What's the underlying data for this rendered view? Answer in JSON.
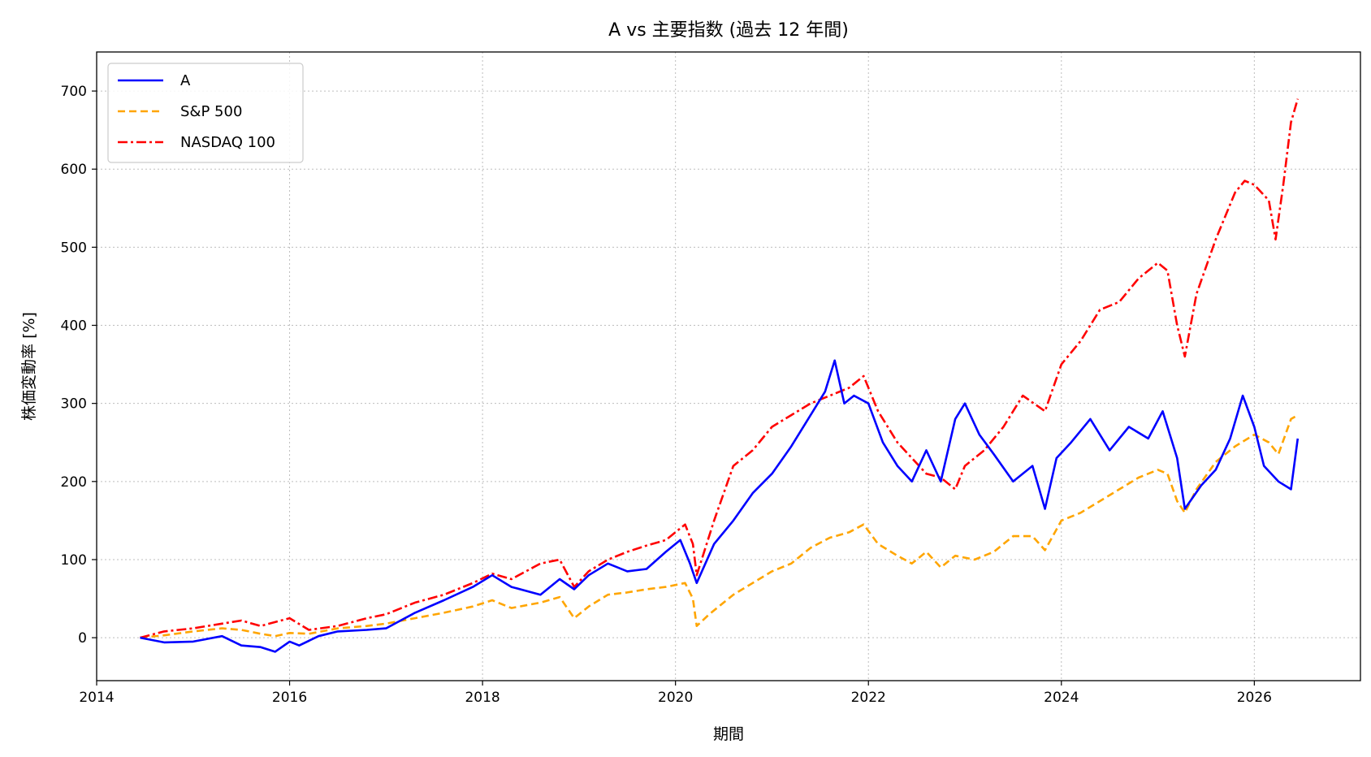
{
  "chart_data": {
    "type": "line",
    "title": "A vs 主要指数 (過去 12 年間)",
    "xlabel": "期間",
    "ylabel": "株価変動率 [%]",
    "xlim": [
      2014.0,
      2027.1
    ],
    "ylim": [
      -55,
      750
    ],
    "x_ticks": [
      2014,
      2016,
      2018,
      2020,
      2022,
      2024,
      2026
    ],
    "x_tick_labels": [
      "2014",
      "2016",
      "2018",
      "2020",
      "2022",
      "2024",
      "2026"
    ],
    "y_ticks": [
      0,
      100,
      200,
      300,
      400,
      500,
      600,
      700
    ],
    "y_tick_labels": [
      "0",
      "100",
      "200",
      "300",
      "400",
      "500",
      "600",
      "700"
    ],
    "grid": true,
    "legend_position": "top-left",
    "series": [
      {
        "name": "A",
        "color": "#0000ff",
        "line_style": "solid",
        "x": [
          2014.45,
          2014.7,
          2015.0,
          2015.3,
          2015.5,
          2015.7,
          2015.85,
          2016.0,
          2016.1,
          2016.3,
          2016.5,
          2016.8,
          2017.0,
          2017.3,
          2017.6,
          2017.9,
          2018.1,
          2018.3,
          2018.6,
          2018.8,
          2018.95,
          2019.1,
          2019.3,
          2019.5,
          2019.7,
          2019.9,
          2020.05,
          2020.15,
          2020.22,
          2020.4,
          2020.6,
          2020.8,
          2021.0,
          2021.2,
          2021.4,
          2021.55,
          2021.65,
          2021.75,
          2021.85,
          2022.0,
          2022.15,
          2022.3,
          2022.45,
          2022.6,
          2022.75,
          2022.9,
          2023.0,
          2023.15,
          2023.3,
          2023.5,
          2023.7,
          2023.83,
          2023.95,
          2024.1,
          2024.3,
          2024.5,
          2024.7,
          2024.9,
          2025.05,
          2025.2,
          2025.28,
          2025.45,
          2025.6,
          2025.75,
          2025.88,
          2026.0,
          2026.1,
          2026.25,
          2026.38,
          2026.45
        ],
        "y": [
          0,
          -6,
          -5,
          2,
          -10,
          -12,
          -18,
          -5,
          -10,
          2,
          8,
          10,
          12,
          32,
          48,
          65,
          80,
          65,
          55,
          75,
          62,
          80,
          95,
          85,
          88,
          110,
          125,
          95,
          70,
          120,
          150,
          185,
          210,
          245,
          285,
          315,
          355,
          300,
          310,
          300,
          250,
          220,
          200,
          240,
          200,
          280,
          300,
          260,
          235,
          200,
          220,
          165,
          230,
          250,
          280,
          240,
          270,
          255,
          290,
          230,
          165,
          195,
          215,
          255,
          310,
          270,
          220,
          200,
          190,
          255
        ]
      },
      {
        "name": "S&P 500",
        "color": "#ffa500",
        "line_style": "dashed",
        "x": [
          2014.45,
          2014.7,
          2015.0,
          2015.3,
          2015.5,
          2015.7,
          2015.85,
          2016.0,
          2016.2,
          2016.5,
          2016.8,
          2017.0,
          2017.3,
          2017.6,
          2017.9,
          2018.1,
          2018.3,
          2018.6,
          2018.8,
          2018.95,
          2019.1,
          2019.3,
          2019.5,
          2019.7,
          2019.9,
          2020.1,
          2020.18,
          2020.22,
          2020.35,
          2020.6,
          2020.8,
          2021.0,
          2021.2,
          2021.4,
          2021.6,
          2021.8,
          2021.95,
          2022.1,
          2022.3,
          2022.45,
          2022.6,
          2022.75,
          2022.9,
          2023.1,
          2023.3,
          2023.5,
          2023.7,
          2023.83,
          2024.0,
          2024.2,
          2024.4,
          2024.6,
          2024.8,
          2025.0,
          2025.1,
          2025.2,
          2025.28,
          2025.4,
          2025.6,
          2025.8,
          2026.0,
          2026.15,
          2026.25,
          2026.38,
          2026.45
        ],
        "y": [
          0,
          3,
          8,
          12,
          10,
          5,
          2,
          6,
          5,
          12,
          15,
          18,
          25,
          32,
          40,
          48,
          38,
          45,
          52,
          25,
          40,
          55,
          58,
          62,
          65,
          70,
          50,
          15,
          30,
          55,
          70,
          85,
          95,
          115,
          128,
          135,
          145,
          120,
          105,
          95,
          110,
          90,
          105,
          100,
          110,
          130,
          130,
          112,
          150,
          160,
          175,
          190,
          205,
          215,
          210,
          175,
          160,
          190,
          225,
          245,
          260,
          250,
          235,
          280,
          285
        ]
      },
      {
        "name": "NASDAQ 100",
        "color": "#ff0000",
        "line_style": "dash-dot",
        "x": [
          2014.45,
          2014.7,
          2015.0,
          2015.3,
          2015.5,
          2015.7,
          2015.85,
          2016.0,
          2016.2,
          2016.5,
          2016.8,
          2017.0,
          2017.3,
          2017.6,
          2017.9,
          2018.1,
          2018.3,
          2018.6,
          2018.8,
          2018.95,
          2019.1,
          2019.3,
          2019.5,
          2019.7,
          2019.9,
          2020.1,
          2020.18,
          2020.22,
          2020.4,
          2020.6,
          2020.8,
          2021.0,
          2021.2,
          2021.4,
          2021.6,
          2021.8,
          2021.95,
          2022.1,
          2022.3,
          2022.45,
          2022.6,
          2022.75,
          2022.9,
          2023.0,
          2023.2,
          2023.4,
          2023.6,
          2023.83,
          2024.0,
          2024.2,
          2024.4,
          2024.6,
          2024.8,
          2025.0,
          2025.1,
          2025.2,
          2025.28,
          2025.4,
          2025.6,
          2025.8,
          2025.9,
          2026.0,
          2026.15,
          2026.22,
          2026.3,
          2026.38,
          2026.45
        ],
        "y": [
          0,
          8,
          12,
          18,
          22,
          15,
          20,
          25,
          10,
          15,
          25,
          30,
          45,
          55,
          70,
          82,
          75,
          95,
          100,
          65,
          85,
          100,
          110,
          118,
          125,
          145,
          120,
          80,
          150,
          220,
          240,
          270,
          285,
          300,
          310,
          320,
          335,
          290,
          250,
          230,
          210,
          205,
          190,
          220,
          240,
          270,
          310,
          290,
          350,
          380,
          420,
          430,
          460,
          480,
          470,
          400,
          360,
          440,
          510,
          570,
          585,
          580,
          560,
          510,
          580,
          660,
          690
        ]
      }
    ]
  }
}
